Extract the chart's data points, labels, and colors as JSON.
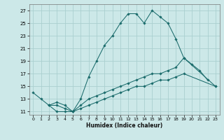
{
  "background_color": "#cce8e8",
  "grid_color": "#aacfcf",
  "line_color": "#1a6b6b",
  "xlabel": "Humidex (Indice chaleur)",
  "ylim": [
    10.5,
    28.0
  ],
  "xlim": [
    -0.5,
    23.5
  ],
  "yticks": [
    11,
    13,
    15,
    17,
    19,
    21,
    23,
    25,
    27
  ],
  "xticks": [
    0,
    1,
    2,
    3,
    4,
    5,
    6,
    7,
    8,
    9,
    10,
    11,
    12,
    13,
    14,
    15,
    16,
    17,
    18,
    19,
    20,
    21,
    22,
    23
  ],
  "series1_x": [
    0,
    1,
    2,
    3,
    4,
    5,
    6,
    7,
    8,
    9,
    10,
    11,
    12,
    13,
    14,
    15,
    16,
    17,
    18,
    19,
    20,
    21,
    22
  ],
  "series1_y": [
    14,
    13,
    12,
    11,
    11,
    11,
    13,
    16.5,
    19,
    21.5,
    23,
    25,
    26.5,
    26.5,
    25,
    27,
    26,
    25,
    22.5,
    19.5,
    18.5,
    17.5,
    16
  ],
  "series2_x": [
    2,
    3,
    4,
    5,
    6,
    7,
    8,
    9,
    10,
    11,
    12,
    13,
    14,
    15,
    16,
    17,
    18,
    19,
    23
  ],
  "series2_y": [
    12,
    12.5,
    12,
    11,
    12,
    13,
    13.5,
    14,
    14.5,
    15,
    15.5,
    16,
    16.5,
    17,
    17,
    17.5,
    18,
    19.5,
    15
  ],
  "series3_x": [
    2,
    3,
    4,
    5,
    6,
    7,
    8,
    9,
    10,
    11,
    12,
    13,
    14,
    15,
    16,
    17,
    18,
    19,
    23
  ],
  "series3_y": [
    12,
    12,
    11.5,
    11,
    11.5,
    12,
    12.5,
    13,
    13.5,
    14,
    14.5,
    15,
    15,
    15.5,
    16,
    16,
    16.5,
    17,
    15
  ]
}
